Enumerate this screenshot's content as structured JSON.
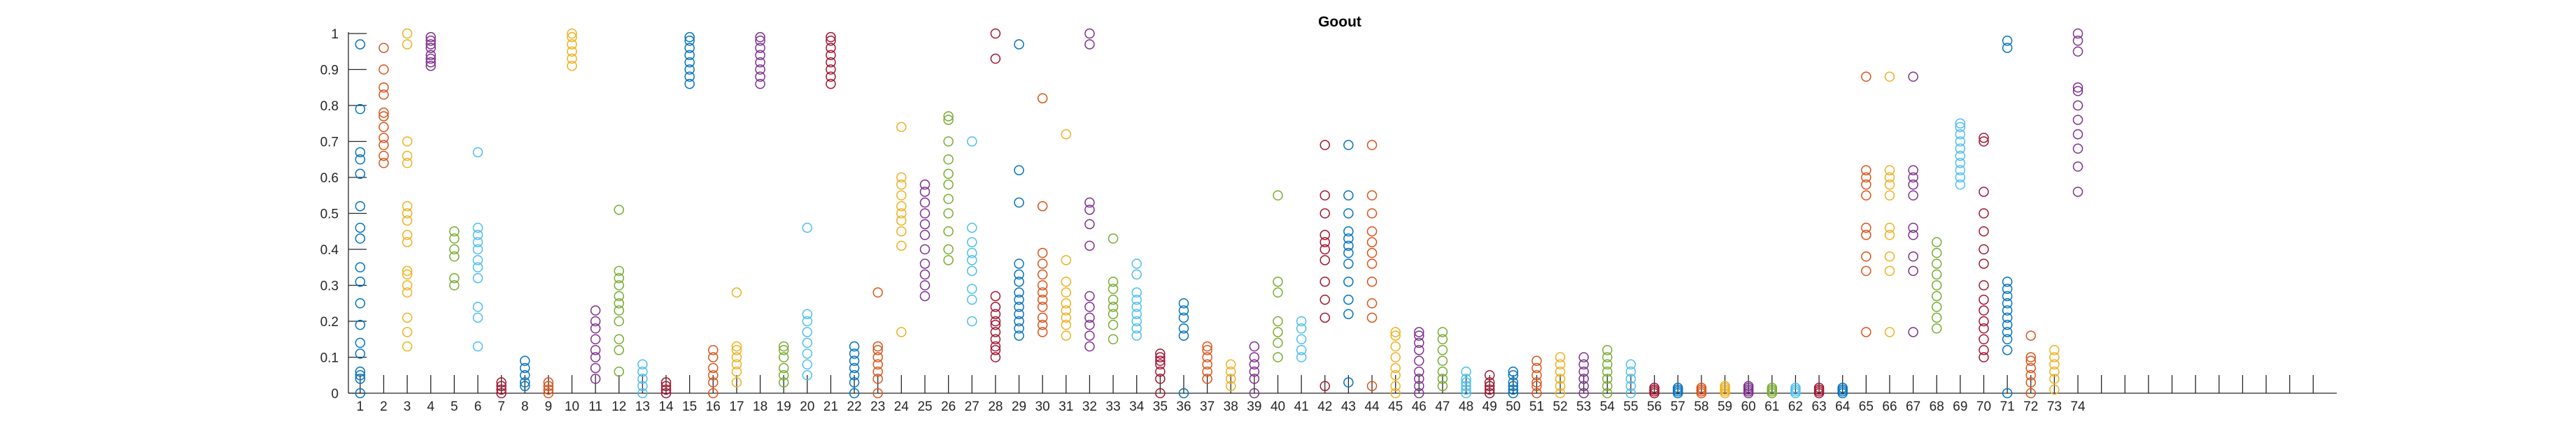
{
  "chart_data": {
    "type": "scatter",
    "title": "Goout",
    "xlabel": "",
    "ylabel": "",
    "xlim": [
      0.5,
      85
    ],
    "ylim": [
      0,
      1
    ],
    "grid": false,
    "legend": "none",
    "x_ticks": [
      "1",
      "2",
      "3",
      "4",
      "5",
      "6",
      "7",
      "8",
      "9",
      "10",
      "11",
      "12",
      "13",
      "14",
      "15",
      "16",
      "17",
      "18",
      "19",
      "20",
      "21",
      "22",
      "23",
      "24",
      "25",
      "26",
      "27",
      "28",
      "29",
      "30",
      "31",
      "32",
      "33",
      "34",
      "35",
      "36",
      "37",
      "38",
      "39",
      "40",
      "41",
      "42",
      "43",
      "44",
      "45",
      "46",
      "47",
      "48",
      "49",
      "50",
      "51",
      "52",
      "53",
      "54",
      "55",
      "56",
      "57",
      "58",
      "59",
      "60",
      "61",
      "62",
      "63",
      "64",
      "65",
      "66",
      "67",
      "68",
      "69",
      "70",
      "71",
      "72",
      "73",
      "74"
    ],
    "y_ticks": [
      "0",
      "0.1",
      "0.2",
      "0.3",
      "0.4",
      "0.5",
      "0.6",
      "0.7",
      "0.8",
      "0.9",
      "1"
    ],
    "palette": [
      "#0072BD",
      "#D95319",
      "#EDB120",
      "#7E2F8E",
      "#77AC30",
      "#4DBEEE",
      "#A2142F"
    ],
    "series": [
      {
        "x": 1,
        "values": [
          0.0,
          0.04,
          0.05,
          0.06,
          0.11,
          0.14,
          0.19,
          0.25,
          0.31,
          0.35,
          0.43,
          0.46,
          0.52,
          0.61,
          0.65,
          0.67,
          0.79,
          0.97
        ]
      },
      {
        "x": 2,
        "values": [
          0.64,
          0.66,
          0.69,
          0.71,
          0.74,
          0.77,
          0.78,
          0.83,
          0.85,
          0.9,
          0.96
        ]
      },
      {
        "x": 3,
        "values": [
          0.13,
          0.17,
          0.21,
          0.28,
          0.3,
          0.33,
          0.34,
          0.42,
          0.44,
          0.48,
          0.5,
          0.52,
          0.64,
          0.66,
          0.7,
          0.97,
          1.0
        ]
      },
      {
        "x": 4,
        "values": [
          0.91,
          0.92,
          0.93,
          0.94,
          0.96,
          0.97,
          0.98,
          0.99
        ]
      },
      {
        "x": 5,
        "values": [
          0.3,
          0.32,
          0.38,
          0.4,
          0.43,
          0.45
        ]
      },
      {
        "x": 6,
        "values": [
          0.13,
          0.21,
          0.24,
          0.32,
          0.35,
          0.37,
          0.4,
          0.42,
          0.44,
          0.46,
          0.67
        ]
      },
      {
        "x": 7,
        "values": [
          0.0,
          0.01,
          0.02,
          0.03
        ]
      },
      {
        "x": 8,
        "values": [
          0.02,
          0.03,
          0.05,
          0.07,
          0.09
        ]
      },
      {
        "x": 9,
        "values": [
          0.0,
          0.01,
          0.02,
          0.03
        ]
      },
      {
        "x": 10,
        "values": [
          0.91,
          0.93,
          0.95,
          0.97,
          0.99,
          1.0
        ]
      },
      {
        "x": 11,
        "values": [
          0.04,
          0.07,
          0.1,
          0.12,
          0.15,
          0.18,
          0.2,
          0.23
        ]
      },
      {
        "x": 12,
        "values": [
          0.06,
          0.12,
          0.15,
          0.2,
          0.23,
          0.25,
          0.27,
          0.3,
          0.32,
          0.34,
          0.51
        ]
      },
      {
        "x": 13,
        "values": [
          0.0,
          0.02,
          0.04,
          0.06,
          0.08
        ]
      },
      {
        "x": 14,
        "values": [
          0.0,
          0.01,
          0.02,
          0.03
        ]
      },
      {
        "x": 15,
        "values": [
          0.86,
          0.88,
          0.9,
          0.92,
          0.94,
          0.96,
          0.98,
          0.99
        ]
      },
      {
        "x": 16,
        "values": [
          0.0,
          0.03,
          0.05,
          0.07,
          0.1,
          0.12
        ]
      },
      {
        "x": 17,
        "values": [
          0.03,
          0.06,
          0.08,
          0.1,
          0.12,
          0.13,
          0.28
        ]
      },
      {
        "x": 18,
        "values": [
          0.86,
          0.88,
          0.9,
          0.92,
          0.94,
          0.96,
          0.98,
          0.99
        ]
      },
      {
        "x": 19,
        "values": [
          0.03,
          0.05,
          0.07,
          0.1,
          0.12,
          0.13
        ]
      },
      {
        "x": 20,
        "values": [
          0.05,
          0.08,
          0.11,
          0.14,
          0.17,
          0.2,
          0.22,
          0.46
        ]
      },
      {
        "x": 21,
        "values": [
          0.86,
          0.88,
          0.9,
          0.92,
          0.94,
          0.96,
          0.98,
          0.99
        ]
      },
      {
        "x": 22,
        "values": [
          0.0,
          0.03,
          0.05,
          0.07,
          0.09,
          0.11,
          0.13
        ]
      },
      {
        "x": 23,
        "values": [
          0.0,
          0.04,
          0.06,
          0.08,
          0.1,
          0.12,
          0.13,
          0.28
        ]
      },
      {
        "x": 24,
        "values": [
          0.17,
          0.41,
          0.45,
          0.48,
          0.5,
          0.52,
          0.55,
          0.58,
          0.6,
          0.74
        ]
      },
      {
        "x": 25,
        "values": [
          0.27,
          0.3,
          0.33,
          0.36,
          0.4,
          0.44,
          0.47,
          0.5,
          0.53,
          0.56,
          0.58
        ]
      },
      {
        "x": 26,
        "values": [
          0.37,
          0.4,
          0.45,
          0.5,
          0.54,
          0.58,
          0.61,
          0.65,
          0.7,
          0.76,
          0.77
        ]
      },
      {
        "x": 27,
        "values": [
          0.2,
          0.26,
          0.29,
          0.34,
          0.37,
          0.39,
          0.42,
          0.46,
          0.7
        ]
      },
      {
        "x": 28,
        "values": [
          0.1,
          0.12,
          0.13,
          0.15,
          0.17,
          0.19,
          0.2,
          0.22,
          0.24,
          0.27,
          0.93,
          1.0
        ]
      },
      {
        "x": 29,
        "values": [
          0.16,
          0.18,
          0.2,
          0.22,
          0.24,
          0.26,
          0.28,
          0.31,
          0.33,
          0.36,
          0.53,
          0.62,
          0.97
        ]
      },
      {
        "x": 30,
        "values": [
          0.17,
          0.19,
          0.21,
          0.24,
          0.26,
          0.28,
          0.3,
          0.33,
          0.36,
          0.39,
          0.52,
          0.82
        ]
      },
      {
        "x": 31,
        "values": [
          0.16,
          0.19,
          0.21,
          0.23,
          0.25,
          0.28,
          0.31,
          0.37,
          0.72
        ]
      },
      {
        "x": 32,
        "values": [
          0.13,
          0.16,
          0.19,
          0.21,
          0.24,
          0.27,
          0.41,
          0.47,
          0.51,
          0.53,
          0.97,
          1.0
        ]
      },
      {
        "x": 33,
        "values": [
          0.15,
          0.19,
          0.22,
          0.24,
          0.26,
          0.29,
          0.31,
          0.43
        ]
      },
      {
        "x": 34,
        "values": [
          0.16,
          0.18,
          0.2,
          0.22,
          0.24,
          0.26,
          0.28,
          0.33,
          0.36
        ]
      },
      {
        "x": 35,
        "values": [
          0.0,
          0.04,
          0.06,
          0.08,
          0.09,
          0.1,
          0.11
        ]
      },
      {
        "x": 36,
        "values": [
          0.0,
          0.16,
          0.18,
          0.21,
          0.23,
          0.25
        ]
      },
      {
        "x": 37,
        "values": [
          0.04,
          0.06,
          0.08,
          0.1,
          0.12,
          0.13
        ]
      },
      {
        "x": 38,
        "values": [
          0.02,
          0.04,
          0.06,
          0.08
        ]
      },
      {
        "x": 39,
        "values": [
          0.0,
          0.04,
          0.06,
          0.08,
          0.1,
          0.13
        ]
      },
      {
        "x": 40,
        "values": [
          0.1,
          0.14,
          0.17,
          0.2,
          0.28,
          0.31,
          0.55
        ]
      },
      {
        "x": 41,
        "values": [
          0.1,
          0.12,
          0.15,
          0.18,
          0.2
        ]
      },
      {
        "x": 42,
        "values": [
          0.02,
          0.21,
          0.26,
          0.31,
          0.37,
          0.4,
          0.42,
          0.44,
          0.5,
          0.55,
          0.69
        ]
      },
      {
        "x": 43,
        "values": [
          0.03,
          0.22,
          0.26,
          0.31,
          0.36,
          0.39,
          0.41,
          0.43,
          0.45,
          0.5,
          0.55,
          0.69
        ]
      },
      {
        "x": 44,
        "values": [
          0.02,
          0.21,
          0.25,
          0.31,
          0.36,
          0.39,
          0.42,
          0.45,
          0.5,
          0.55,
          0.69
        ]
      },
      {
        "x": 45,
        "values": [
          0.0,
          0.02,
          0.05,
          0.07,
          0.1,
          0.13,
          0.16,
          0.17
        ]
      },
      {
        "x": 46,
        "values": [
          0.0,
          0.02,
          0.04,
          0.06,
          0.09,
          0.12,
          0.14,
          0.16,
          0.17
        ]
      },
      {
        "x": 47,
        "values": [
          0.02,
          0.04,
          0.06,
          0.09,
          0.12,
          0.15,
          0.17
        ]
      },
      {
        "x": 48,
        "values": [
          0.0,
          0.01,
          0.02,
          0.03,
          0.04,
          0.06
        ]
      },
      {
        "x": 49,
        "values": [
          0.0,
          0.01,
          0.02,
          0.03,
          0.05
        ]
      },
      {
        "x": 50,
        "values": [
          0.0,
          0.01,
          0.02,
          0.03,
          0.05,
          0.06
        ]
      },
      {
        "x": 51,
        "values": [
          0.0,
          0.02,
          0.03,
          0.05,
          0.07,
          0.09
        ]
      },
      {
        "x": 52,
        "values": [
          0.0,
          0.02,
          0.04,
          0.06,
          0.08,
          0.1
        ]
      },
      {
        "x": 53,
        "values": [
          0.0,
          0.02,
          0.04,
          0.06,
          0.08,
          0.1
        ]
      },
      {
        "x": 54,
        "values": [
          0.0,
          0.02,
          0.04,
          0.06,
          0.08,
          0.1,
          0.12
        ]
      },
      {
        "x": 55,
        "values": [
          0.0,
          0.02,
          0.04,
          0.06,
          0.08
        ]
      },
      {
        "x": 56,
        "values": [
          0.0,
          0.005,
          0.01,
          0.015
        ]
      },
      {
        "x": 57,
        "values": [
          0.0,
          0.005,
          0.01,
          0.015
        ]
      },
      {
        "x": 58,
        "values": [
          0.0,
          0.005,
          0.01,
          0.015
        ]
      },
      {
        "x": 59,
        "values": [
          0.0,
          0.005,
          0.01,
          0.015,
          0.02
        ]
      },
      {
        "x": 60,
        "values": [
          0.0,
          0.005,
          0.01,
          0.015,
          0.02
        ]
      },
      {
        "x": 61,
        "values": [
          0.0,
          0.005,
          0.01,
          0.015
        ]
      },
      {
        "x": 62,
        "values": [
          0.0,
          0.005,
          0.01,
          0.015
        ]
      },
      {
        "x": 63,
        "values": [
          0.0,
          0.005,
          0.01,
          0.015
        ]
      },
      {
        "x": 64,
        "values": [
          0.0,
          0.005,
          0.01,
          0.015
        ]
      },
      {
        "x": 65,
        "values": [
          0.17,
          0.34,
          0.38,
          0.44,
          0.46,
          0.55,
          0.58,
          0.6,
          0.62,
          0.88
        ]
      },
      {
        "x": 66,
        "values": [
          0.17,
          0.34,
          0.38,
          0.44,
          0.46,
          0.55,
          0.58,
          0.6,
          0.62,
          0.88
        ]
      },
      {
        "x": 67,
        "values": [
          0.17,
          0.34,
          0.38,
          0.44,
          0.46,
          0.55,
          0.58,
          0.6,
          0.62,
          0.88
        ]
      },
      {
        "x": 68,
        "values": [
          0.18,
          0.21,
          0.24,
          0.27,
          0.3,
          0.33,
          0.36,
          0.39,
          0.42
        ]
      },
      {
        "x": 69,
        "values": [
          0.58,
          0.6,
          0.62,
          0.64,
          0.66,
          0.68,
          0.7,
          0.72,
          0.74,
          0.75
        ]
      },
      {
        "x": 70,
        "values": [
          0.1,
          0.12,
          0.15,
          0.18,
          0.2,
          0.23,
          0.26,
          0.3,
          0.36,
          0.4,
          0.45,
          0.5,
          0.56,
          0.7,
          0.71
        ]
      },
      {
        "x": 71,
        "values": [
          0.0,
          0.12,
          0.15,
          0.17,
          0.19,
          0.21,
          0.23,
          0.25,
          0.27,
          0.29,
          0.31,
          0.96,
          0.98
        ]
      },
      {
        "x": 72,
        "values": [
          0.0,
          0.03,
          0.05,
          0.07,
          0.09,
          0.1,
          0.16
        ]
      },
      {
        "x": 73,
        "values": [
          0.01,
          0.04,
          0.06,
          0.08,
          0.1,
          0.12
        ]
      },
      {
        "x": 74,
        "values": [
          0.56,
          0.63,
          0.68,
          0.72,
          0.76,
          0.8,
          0.84,
          0.85,
          0.95,
          0.98,
          1.0
        ]
      }
    ]
  }
}
